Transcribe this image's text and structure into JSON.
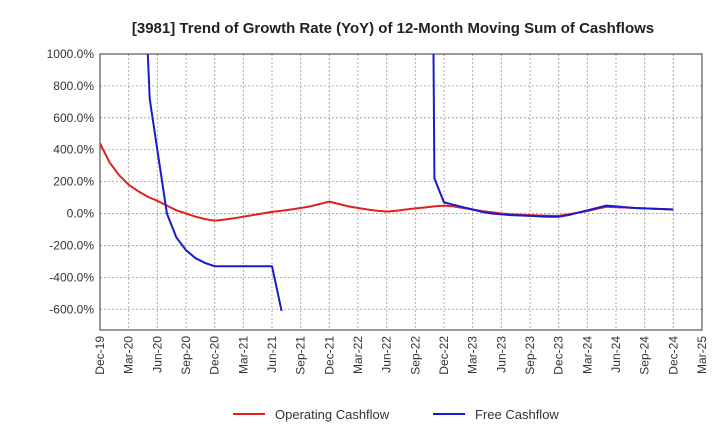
{
  "chart_data": {
    "type": "line",
    "title": "[3981]  Trend of Growth Rate (YoY) of 12-Month Moving Sum of Cashflows",
    "xlabel": "",
    "ylabel": "",
    "x_ticks": [
      "Dec-19",
      "Mar-20",
      "Jun-20",
      "Sep-20",
      "Dec-20",
      "Mar-21",
      "Jun-21",
      "Sep-21",
      "Dec-21",
      "Mar-22",
      "Jun-22",
      "Sep-22",
      "Dec-22",
      "Mar-23",
      "Jun-23",
      "Sep-23",
      "Dec-23",
      "Mar-24",
      "Jun-24",
      "Sep-24",
      "Dec-24",
      "Mar-25"
    ],
    "y_ticks": [
      "1000.0%",
      "800.0%",
      "600.0%",
      "400.0%",
      "200.0%",
      "0.0%",
      "-200.0%",
      "-400.0%",
      "-600.0%"
    ],
    "y_tick_values": [
      1000,
      800,
      600,
      400,
      200,
      0,
      -200,
      -400,
      -600
    ],
    "ylim": [
      -730,
      1000
    ],
    "x_range": [
      0,
      63
    ],
    "grid": true,
    "legend_position": "bottom",
    "series": [
      {
        "name": "Operating Cashflow",
        "color": "#dd2222",
        "points": [
          [
            0,
            440
          ],
          [
            1,
            320
          ],
          [
            2,
            240
          ],
          [
            3,
            180
          ],
          [
            4,
            140
          ],
          [
            5,
            105
          ],
          [
            6,
            80
          ],
          [
            7,
            50
          ],
          [
            8,
            20
          ],
          [
            9,
            0
          ],
          [
            10,
            -20
          ],
          [
            11,
            -35
          ],
          [
            12,
            -45
          ],
          [
            13,
            -38
          ],
          [
            14,
            -30
          ],
          [
            15,
            -20
          ],
          [
            16,
            -10
          ],
          [
            17,
            0
          ],
          [
            18,
            10
          ],
          [
            19,
            18
          ],
          [
            20,
            25
          ],
          [
            21,
            35
          ],
          [
            22,
            45
          ],
          [
            23,
            60
          ],
          [
            24,
            75
          ],
          [
            25,
            60
          ],
          [
            26,
            45
          ],
          [
            27,
            35
          ],
          [
            28,
            25
          ],
          [
            29,
            18
          ],
          [
            30,
            12
          ],
          [
            31,
            18
          ],
          [
            32,
            25
          ],
          [
            33,
            32
          ],
          [
            34,
            38
          ],
          [
            35,
            45
          ],
          [
            36,
            50
          ],
          [
            37,
            45
          ],
          [
            38,
            35
          ],
          [
            39,
            25
          ],
          [
            40,
            15
          ],
          [
            41,
            8
          ],
          [
            42,
            0
          ],
          [
            43,
            -5
          ],
          [
            44,
            -8
          ],
          [
            45,
            -10
          ],
          [
            46,
            -12
          ],
          [
            47,
            -14
          ],
          [
            48,
            -15
          ],
          [
            49,
            -5
          ],
          [
            50,
            5
          ],
          [
            51,
            15
          ],
          [
            52,
            30
          ],
          [
            53,
            42
          ],
          [
            54,
            40
          ],
          [
            55,
            38
          ],
          [
            56,
            35
          ],
          [
            57,
            32
          ],
          [
            58,
            30
          ],
          [
            59,
            28
          ],
          [
            60,
            25
          ]
        ]
      },
      {
        "name": "Free Cashflow",
        "color": "#1a1acc",
        "segments": [
          [
            [
              5,
              1000
            ],
            [
              5.2,
              720
            ],
            [
              6,
              400
            ],
            [
              7,
              0
            ],
            [
              8,
              -150
            ],
            [
              9,
              -230
            ],
            [
              10,
              -280
            ],
            [
              11,
              -310
            ],
            [
              12,
              -330
            ],
            [
              13,
              -330
            ],
            [
              14,
              -330
            ],
            [
              15,
              -330
            ],
            [
              16,
              -330
            ],
            [
              17,
              -330
            ],
            [
              18,
              -330
            ],
            [
              19,
              -610
            ]
          ],
          [
            [
              34.9,
              1000
            ],
            [
              35,
              220
            ],
            [
              36,
              70
            ],
            [
              37,
              55
            ],
            [
              38,
              40
            ],
            [
              39,
              25
            ],
            [
              40,
              10
            ],
            [
              41,
              0
            ],
            [
              42,
              -5
            ],
            [
              43,
              -10
            ],
            [
              44,
              -12
            ],
            [
              45,
              -15
            ],
            [
              46,
              -18
            ],
            [
              47,
              -20
            ],
            [
              48,
              -20
            ],
            [
              49,
              -10
            ],
            [
              50,
              5
            ],
            [
              51,
              20
            ],
            [
              52,
              35
            ],
            [
              53,
              50
            ],
            [
              54,
              45
            ],
            [
              55,
              40
            ],
            [
              56,
              35
            ],
            [
              57,
              32
            ],
            [
              58,
              30
            ],
            [
              59,
              28
            ],
            [
              60,
              25
            ]
          ]
        ]
      }
    ]
  }
}
